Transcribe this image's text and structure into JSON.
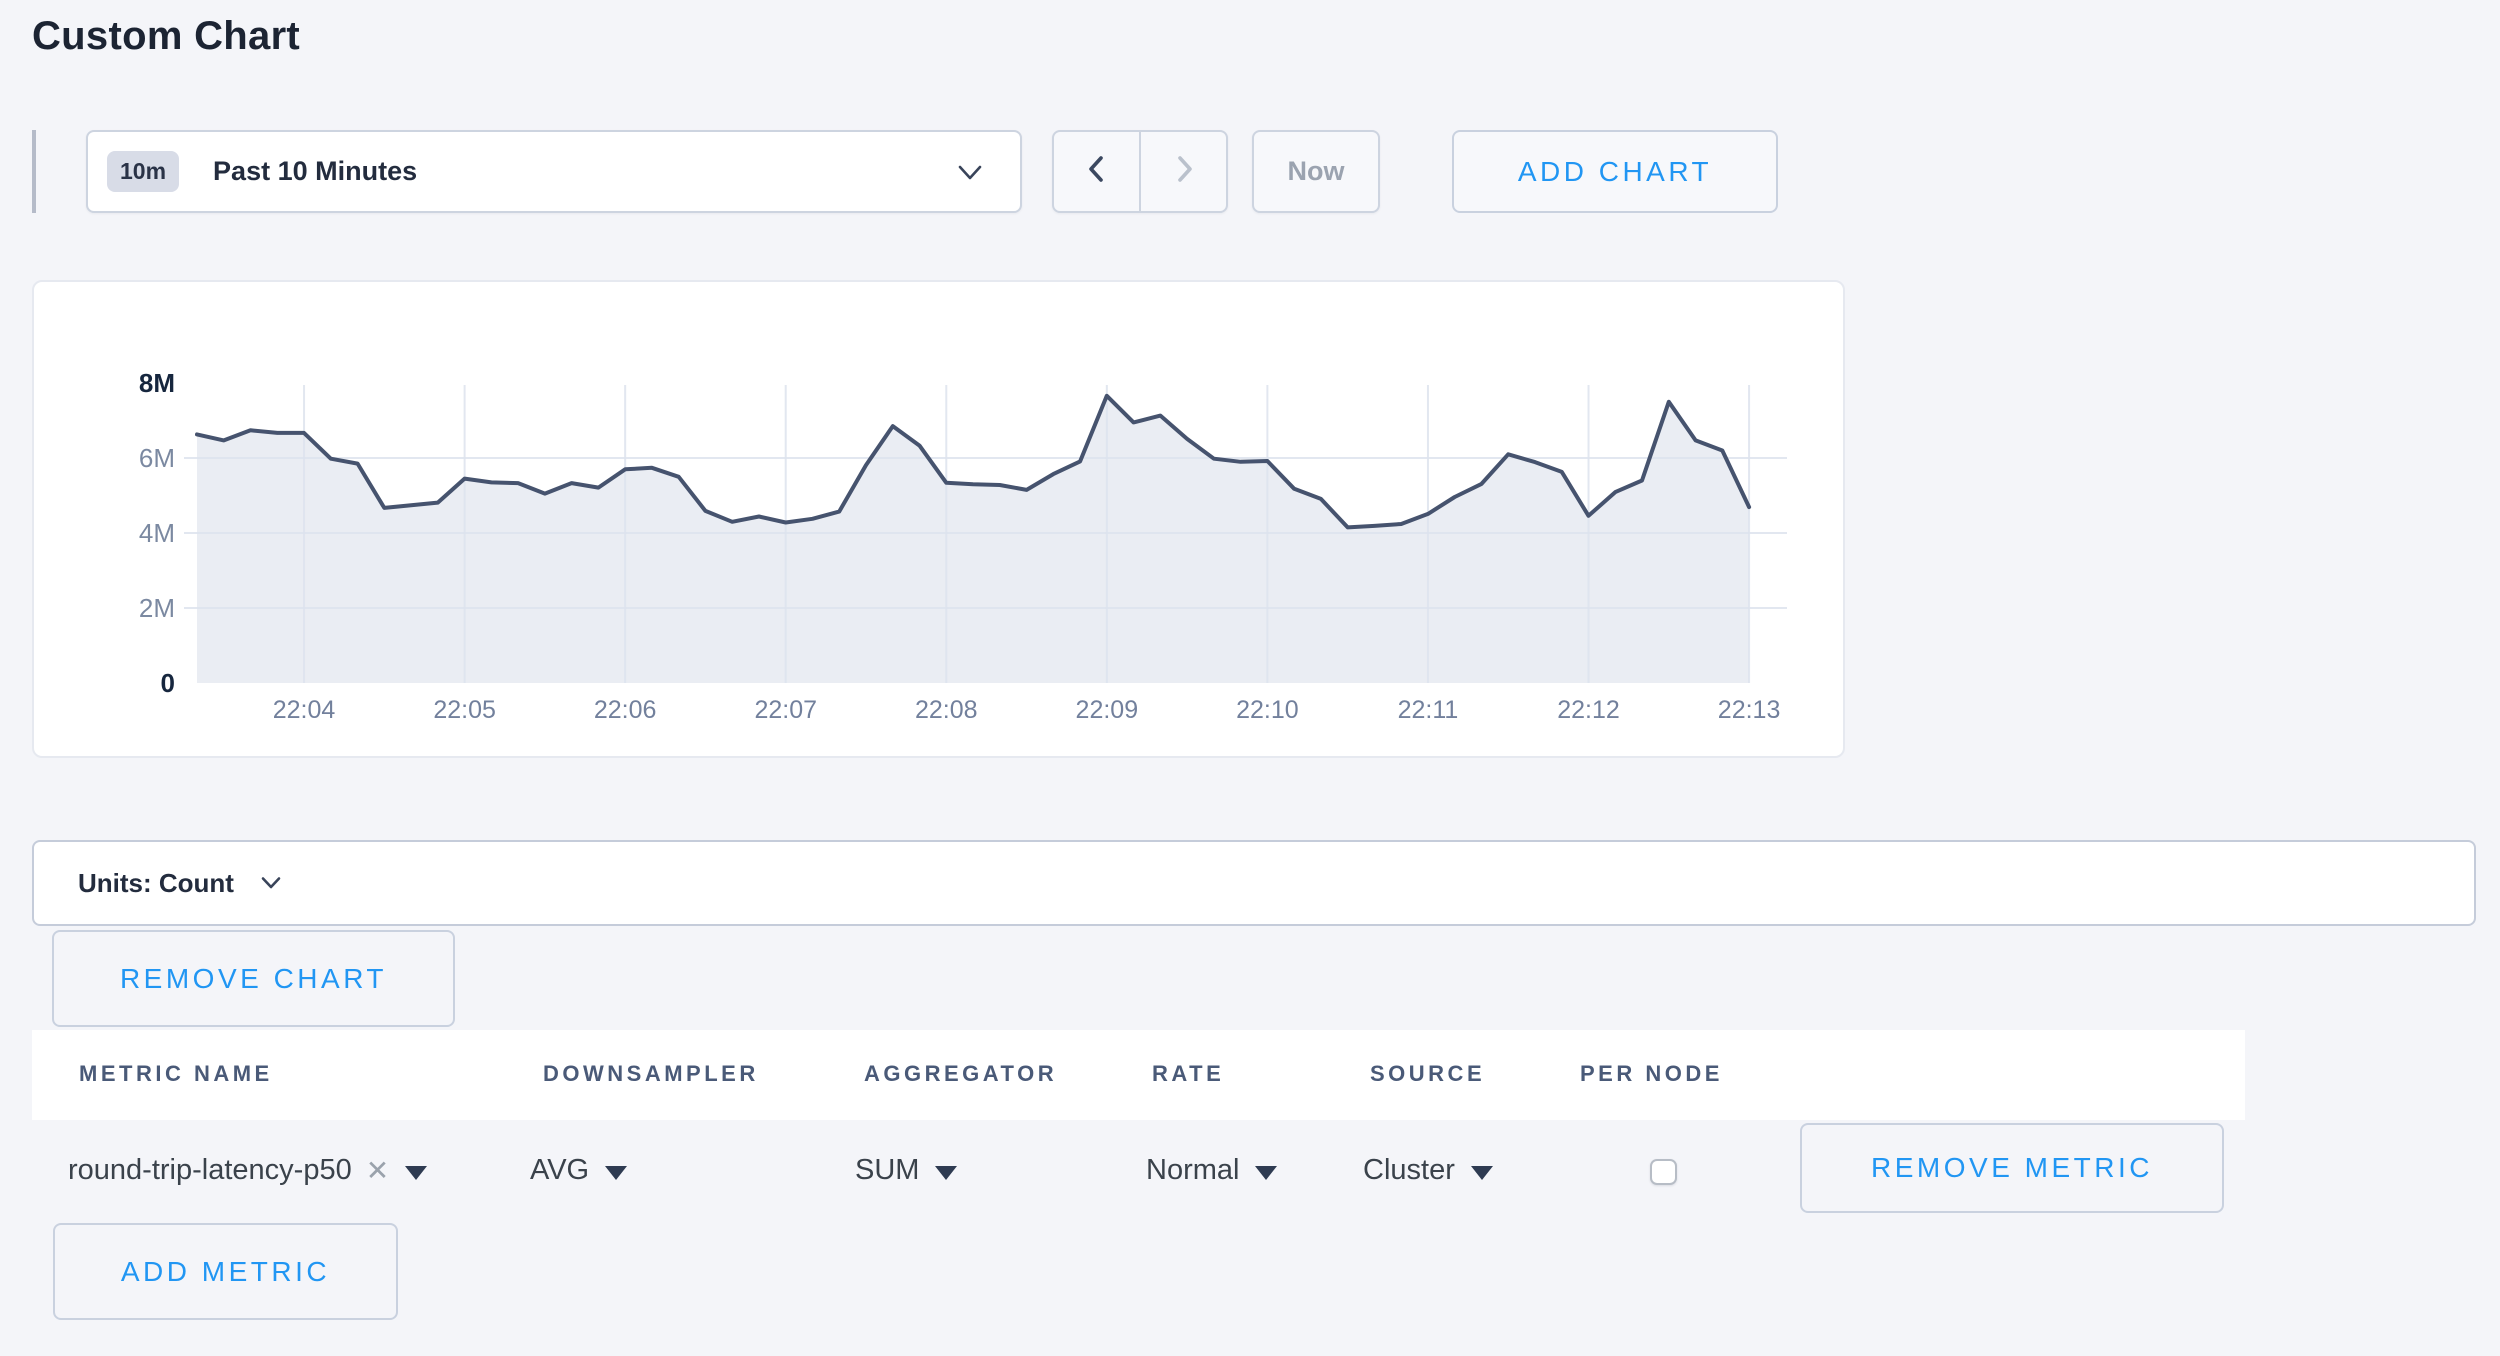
{
  "page": {
    "title": "Custom Chart"
  },
  "toolbar": {
    "range_badge": "10m",
    "range_label": "Past 10 Minutes",
    "prev_icon": "chevron-left",
    "next_icon": "chevron-right",
    "now_label": "Now",
    "add_chart_label": "ADD CHART"
  },
  "colors": {
    "accent_blue": "#2196f3",
    "line": "#46536e",
    "area_fill": "#d5dbe8",
    "grid": "#dde3ed",
    "tick_muted": "#7b89a1",
    "tick_emphasis": "#16263e",
    "x_tick": "#72809c"
  },
  "chart_data": {
    "type": "area",
    "title": "",
    "xlabel": "",
    "ylabel": "",
    "ylim": [
      0,
      8000000
    ],
    "grid": true,
    "legend": "none",
    "x_start_time": "22:03:20",
    "point_interval_seconds": 10,
    "x_tick_labels": [
      "22:04",
      "22:05",
      "22:06",
      "22:07",
      "22:08",
      "22:09",
      "22:10",
      "22:11",
      "22:12",
      "22:13"
    ],
    "x_tick_indices": [
      4,
      10,
      16,
      22,
      28,
      34,
      40,
      46,
      52,
      58
    ],
    "y_ticks": [
      {
        "label": "8M",
        "value": 8000000,
        "grid": false,
        "emphasis": true
      },
      {
        "label": "6M",
        "value": 6000000,
        "grid": true,
        "emphasis": false
      },
      {
        "label": "4M",
        "value": 4000000,
        "grid": true,
        "emphasis": false
      },
      {
        "label": "2M",
        "value": 2000000,
        "grid": true,
        "emphasis": false
      },
      {
        "label": "0",
        "value": 0,
        "grid": false,
        "emphasis": true
      }
    ],
    "series": [
      {
        "name": "round-trip-latency-p50",
        "values": [
          6630000,
          6470000,
          6740000,
          6670000,
          6670000,
          5980000,
          5850000,
          4670000,
          4740000,
          4810000,
          5450000,
          5350000,
          5330000,
          5050000,
          5330000,
          5210000,
          5700000,
          5740000,
          5500000,
          4590000,
          4300000,
          4440000,
          4280000,
          4380000,
          4570000,
          5810000,
          6850000,
          6330000,
          5340000,
          5300000,
          5280000,
          5150000,
          5570000,
          5910000,
          7660000,
          6950000,
          7130000,
          6510000,
          5980000,
          5900000,
          5920000,
          5180000,
          4910000,
          4150000,
          4190000,
          4240000,
          4510000,
          4960000,
          5310000,
          6100000,
          5890000,
          5630000,
          4460000,
          5090000,
          5400000,
          7500000,
          6470000,
          6200000,
          4690000
        ]
      }
    ]
  },
  "units_bar": {
    "label": "Units: Count"
  },
  "chart_actions": {
    "remove_chart_label": "REMOVE CHART"
  },
  "metrics_table": {
    "headers": [
      "METRIC NAME",
      "DOWNSAMPLER",
      "AGGREGATOR",
      "RATE",
      "SOURCE",
      "PER NODE"
    ],
    "rows": [
      {
        "metric_name": "round-trip-latency-p50",
        "clear_icon": "✕",
        "downsampler": "AVG",
        "aggregator": "SUM",
        "rate": "Normal",
        "source": "Cluster",
        "per_node_checked": false,
        "remove_label": "REMOVE METRIC"
      }
    ],
    "add_metric_label": "ADD METRIC"
  }
}
